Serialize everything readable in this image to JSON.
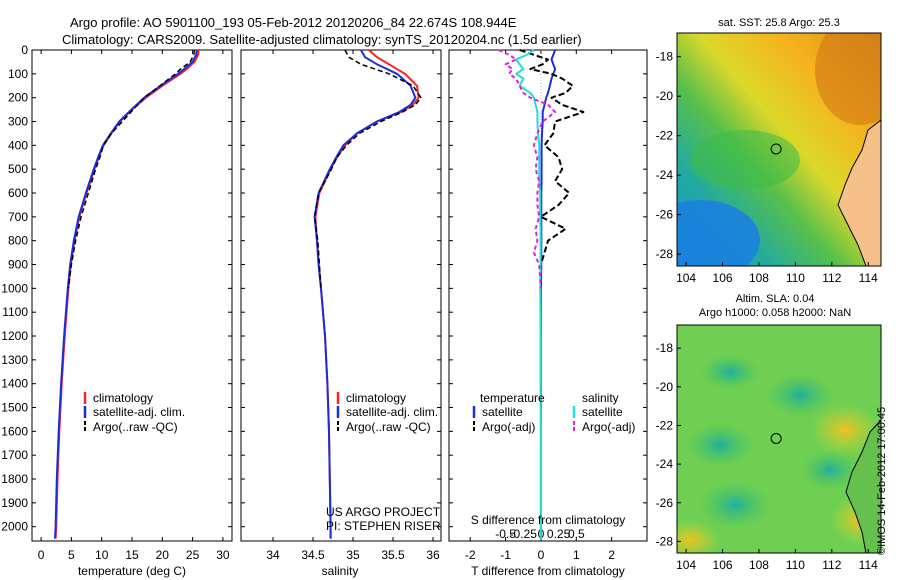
{
  "header": {
    "line1": "Argo profile: AO 5901100_193 05-Feb-2012 20120206_84 22.674S 108.944E",
    "line2": "Climatology: CARS2009. Satellite-adjusted climatology: synTS_20120204.nc (1.5d earlier)"
  },
  "colors": {
    "climatology": "#ff2020",
    "satellite": "#1a2ee0",
    "argo": "#000000",
    "satellite_salinity": "#22dddd",
    "argo_salinity": "#dd22dd"
  },
  "depth_axis": {
    "ticks": [
      "0",
      "100",
      "200",
      "300",
      "400",
      "500",
      "600",
      "700",
      "800",
      "900",
      "1000",
      "1100",
      "1200",
      "1300",
      "1400",
      "1500",
      "1600",
      "1700",
      "1800",
      "1900",
      "2000"
    ]
  },
  "credits": {
    "project": "US ARGO PROJECT",
    "pi": "PI: STEPHEN RISER",
    "imos": "©IMOS 14-Feb-2012 17:00:45"
  },
  "chart_data": [
    {
      "type": "line",
      "id": "temperature",
      "xlabel": "temperature (deg C)",
      "ylabel": "depth",
      "xlim": [
        -1.5,
        31.5
      ],
      "ylim": [
        2060,
        0
      ],
      "xticks": [
        0,
        5,
        10,
        15,
        20,
        25,
        30
      ],
      "xtick_labels": [
        "0",
        "5",
        "10",
        "15",
        "20",
        "25",
        "30"
      ],
      "legend": [
        "climatology",
        "satellite-adj. clim.",
        "Argo(..raw -QC)"
      ],
      "depth": [
        0,
        20,
        50,
        80,
        100,
        150,
        200,
        250,
        300,
        350,
        400,
        450,
        500,
        600,
        700,
        800,
        900,
        1000,
        1200,
        1400,
        1600,
        1800,
        2000,
        2050
      ],
      "series": [
        {
          "name": "climatology",
          "values": [
            26.0,
            25.9,
            25.3,
            24.0,
            23.0,
            20.0,
            17.3,
            15.0,
            13.0,
            11.6,
            10.3,
            9.5,
            8.8,
            7.5,
            6.3,
            5.5,
            4.9,
            4.5,
            3.9,
            3.4,
            3.0,
            2.7,
            2.5,
            2.4
          ]
        },
        {
          "name": "satellite-adj. clim.",
          "values": [
            25.7,
            25.6,
            25.0,
            23.6,
            22.6,
            19.7,
            17.0,
            14.9,
            12.9,
            11.5,
            10.2,
            9.4,
            8.7,
            7.4,
            6.2,
            5.4,
            4.8,
            4.4,
            3.8,
            3.3,
            2.9,
            2.6,
            2.4,
            2.3
          ]
        },
        {
          "name": "Argo(..raw -QC)",
          "values": [
            25.3,
            25.2,
            24.6,
            23.0,
            22.2,
            19.6,
            17.0,
            15.2,
            13.4,
            11.6,
            10.3,
            9.7,
            9.0,
            7.8,
            6.6,
            5.7,
            5.0,
            4.5,
            null,
            null,
            null,
            null,
            null,
            null
          ]
        }
      ]
    },
    {
      "type": "line",
      "id": "salinity",
      "xlabel": "salinity",
      "ylabel": "depth",
      "xlim": [
        33.6,
        36.1
      ],
      "ylim": [
        2060,
        0
      ],
      "xticks": [
        34,
        34.5,
        35,
        35.5,
        36
      ],
      "xtick_labels": [
        "34",
        "34.5",
        "35",
        "35.5",
        "36"
      ],
      "legend": [
        "climatology",
        "satellite-adj. clim.",
        "Argo(..raw -QC)"
      ],
      "depth": [
        0,
        30,
        60,
        100,
        150,
        200,
        230,
        260,
        300,
        350,
        400,
        450,
        500,
        600,
        700,
        800,
        900,
        1000,
        1200,
        1400,
        1600,
        1800,
        2000,
        2050
      ],
      "series": [
        {
          "name": "climatology",
          "values": [
            35.2,
            35.3,
            35.45,
            35.65,
            35.8,
            35.82,
            35.75,
            35.6,
            35.3,
            35.05,
            34.9,
            34.8,
            34.72,
            34.58,
            34.53,
            34.55,
            34.57,
            34.6,
            34.65,
            34.68,
            34.7,
            34.71,
            34.72,
            34.72
          ]
        },
        {
          "name": "satellite-adj. clim.",
          "values": [
            35.1,
            35.15,
            35.3,
            35.55,
            35.72,
            35.78,
            35.72,
            35.58,
            35.3,
            35.05,
            34.88,
            34.79,
            34.71,
            34.57,
            34.52,
            34.55,
            34.57,
            34.6,
            34.65,
            34.68,
            34.7,
            34.71,
            34.72,
            34.72
          ]
        },
        {
          "name": "Argo(..raw -QC)",
          "values": [
            34.9,
            34.95,
            35.1,
            35.45,
            35.75,
            35.85,
            35.78,
            35.62,
            35.35,
            35.08,
            34.92,
            34.8,
            34.73,
            34.57,
            34.52,
            34.56,
            34.58,
            34.6,
            null,
            null,
            null,
            null,
            null,
            null
          ]
        }
      ]
    },
    {
      "type": "line",
      "id": "difference",
      "xlabel": "T difference from climatology",
      "xlabel2": "S difference from climatology",
      "ylabel": "depth",
      "xlim": [
        -2.6,
        3.0
      ],
      "ylim": [
        2060,
        0
      ],
      "xticks": [
        -2,
        -1,
        0,
        1,
        2
      ],
      "xtick_labels": [
        "-2",
        "-1",
        "0",
        "1",
        "2"
      ],
      "sticks": [
        -1,
        -0.5,
        0,
        0.5,
        1
      ],
      "stick_labels": [
        "-0.5",
        "-0.25",
        "0",
        "0.25",
        "0.5"
      ],
      "legend_title_t": "temperature",
      "legend_title_s": "salinity",
      "legend": [
        "satellite",
        "Argo(-adj)",
        "satellite",
        "Argo(-adj)"
      ],
      "depth": [
        0,
        20,
        40,
        60,
        80,
        100,
        120,
        150,
        180,
        200,
        230,
        260,
        300,
        350,
        400,
        450,
        500,
        550,
        600,
        650,
        700,
        750,
        800,
        850,
        900,
        1000,
        1200,
        1400,
        1600,
        1800,
        2000,
        2050
      ],
      "series": [
        {
          "name": "T satellite",
          "values": [
            0.4,
            0.35,
            0.3,
            0.35,
            0.4,
            0.35,
            0.3,
            0.25,
            0.2,
            0.15,
            0.1,
            0.05,
            0.05,
            0.03,
            0.02,
            0.02,
            0.02,
            0.02,
            0.01,
            0.01,
            0.01,
            0.01,
            0.01,
            0.01,
            0.01,
            0.0,
            0.0,
            0.0,
            0.0,
            0.0,
            0.0,
            0.0
          ]
        },
        {
          "name": "T Argo(-adj)",
          "values": [
            -0.6,
            -0.2,
            0.2,
            0.05,
            -0.3,
            0.3,
            0.6,
            0.9,
            0.7,
            0.3,
            0.6,
            1.2,
            0.4,
            0.35,
            0.1,
            0.5,
            0.6,
            0.4,
            0.8,
            0.5,
            0.0,
            0.7,
            0.2,
            0.1,
            0.0,
            0.0,
            null,
            null,
            null,
            null,
            null,
            null
          ]
        },
        {
          "name": "S satellite",
          "values": [
            -0.2,
            -0.4,
            -0.7,
            -0.6,
            -0.5,
            -0.7,
            -0.5,
            -0.6,
            -0.3,
            -0.2,
            -0.15,
            -0.1,
            -0.1,
            -0.08,
            -0.05,
            -0.05,
            -0.05,
            -0.05,
            -0.02,
            -0.02,
            -0.02,
            -0.01,
            -0.01,
            -0.01,
            -0.01,
            -0.02,
            -0.01,
            -0.01,
            0.0,
            0.0,
            0.0,
            0.0
          ]
        },
        {
          "name": "S Argo(-adj)",
          "values": [
            -1.2,
            -0.9,
            -0.7,
            -1.0,
            -0.8,
            -0.9,
            -0.7,
            -0.6,
            -0.5,
            -0.3,
            0.2,
            0.4,
            0.05,
            -0.1,
            -0.2,
            -0.1,
            -0.15,
            -0.05,
            -0.1,
            -0.1,
            -0.05,
            -0.15,
            -0.1,
            -0.2,
            -0.05,
            0.0,
            null,
            null,
            null,
            null,
            null,
            null
          ]
        }
      ]
    },
    {
      "type": "heatmap",
      "id": "sst_map",
      "title": "sat. SST: 25.8 Argo: 25.3",
      "xlim": [
        103.5,
        114.7
      ],
      "ylim": [
        -28.6,
        -16.8
      ],
      "xticks": [
        104,
        106,
        108,
        110,
        112,
        114
      ],
      "xtick_labels": [
        "104",
        "106",
        "108",
        "110",
        "112",
        "114"
      ],
      "yticks": [
        -18,
        -20,
        -22,
        -24,
        -26,
        -28
      ],
      "ytick_labels": [
        "-18",
        "-20",
        "-22",
        "-24",
        "-26",
        "-28"
      ],
      "marker": {
        "lon": 108.944,
        "lat": -22.674
      }
    },
    {
      "type": "heatmap",
      "id": "sla_map",
      "title": "Altim. SLA: 0.04",
      "subtitle": "Argo h1000: 0.058 h2000: NaN",
      "xlim": [
        103.5,
        114.7
      ],
      "ylim": [
        -28.6,
        -16.8
      ],
      "xticks": [
        104,
        106,
        108,
        110,
        112,
        114
      ],
      "xtick_labels": [
        "104",
        "106",
        "108",
        "110",
        "112",
        "114"
      ],
      "yticks": [
        -18,
        -20,
        -22,
        -24,
        -26,
        -28
      ],
      "ytick_labels": [
        "-18",
        "-20",
        "-22",
        "-24",
        "-26",
        "-28"
      ],
      "marker": {
        "lon": 108.944,
        "lat": -22.674
      }
    }
  ]
}
